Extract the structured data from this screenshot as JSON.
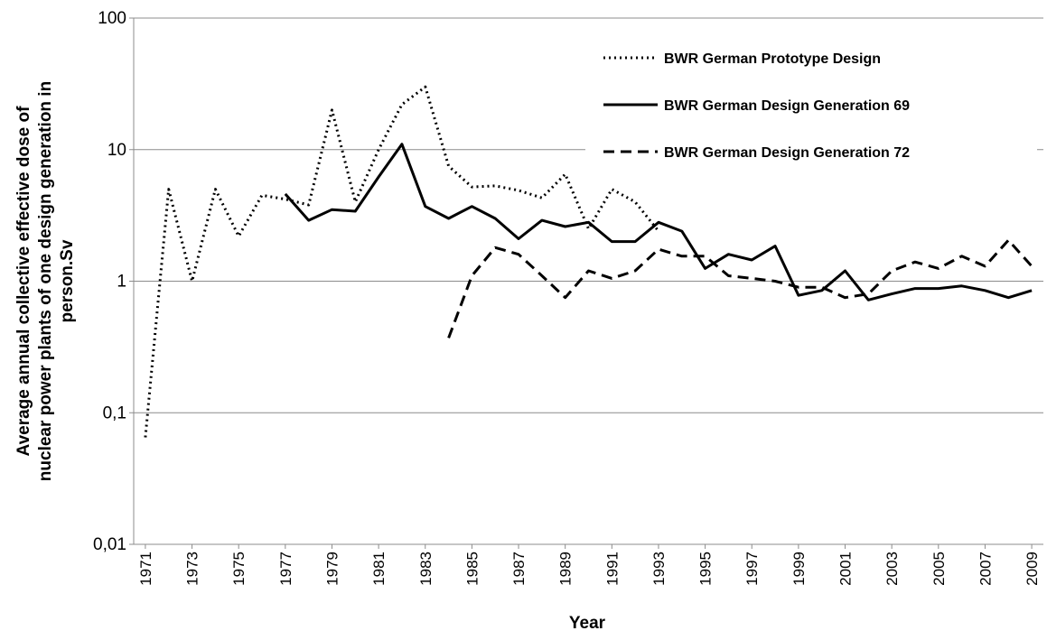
{
  "chart_data": {
    "type": "line",
    "x_label": "Year",
    "y_label": [
      "Average annual collective effective dose of",
      "nuclear power plants of one design generation in",
      "person.Sv"
    ],
    "x": [
      1971,
      1972,
      1973,
      1974,
      1975,
      1976,
      1977,
      1978,
      1979,
      1980,
      1981,
      1982,
      1983,
      1984,
      1985,
      1986,
      1987,
      1988,
      1989,
      1990,
      1991,
      1992,
      1993,
      1994,
      1995,
      1996,
      1997,
      1998,
      1999,
      2000,
      2001,
      2002,
      2003,
      2004,
      2005,
      2006,
      2007,
      2008,
      2009
    ],
    "xlim": [
      1970.5,
      2009.5
    ],
    "xticks": [
      1971,
      1973,
      1975,
      1977,
      1979,
      1981,
      1983,
      1985,
      1987,
      1989,
      1991,
      1993,
      1995,
      1997,
      1999,
      2001,
      2003,
      2005,
      2007,
      2009
    ],
    "ylim": [
      0.01,
      100
    ],
    "yscale": "log",
    "yticks": [
      {
        "value": 0.01,
        "label": "0,01"
      },
      {
        "value": 0.1,
        "label": "0,1"
      },
      1,
      10,
      100
    ],
    "grid": true,
    "legend": "top-right",
    "series": [
      {
        "name": "BWR German Prototype Design",
        "color": "#000000",
        "dash": "dotted",
        "values": [
          0.065,
          5,
          1.0,
          5,
          2.2,
          4.5,
          4.2,
          3.8,
          20,
          4.0,
          10,
          22,
          30,
          7.5,
          5.2,
          5.3,
          4.9,
          4.3,
          6.5,
          2.5,
          5.0,
          4.0,
          2.4,
          null,
          null,
          null,
          null,
          null,
          null,
          null,
          null,
          null,
          null,
          null,
          null,
          null,
          null,
          null,
          null
        ]
      },
      {
        "name": "BWR German Design Generation 69",
        "color": "#000000",
        "dash": "solid",
        "values": [
          null,
          null,
          null,
          null,
          null,
          null,
          4.6,
          2.9,
          3.5,
          3.4,
          6.2,
          11,
          3.7,
          3.0,
          3.7,
          3.0,
          2.1,
          2.9,
          2.6,
          2.8,
          2.0,
          2.0,
          2.8,
          2.4,
          1.25,
          1.6,
          1.45,
          1.85,
          0.78,
          0.85,
          1.2,
          0.72,
          0.8,
          0.88,
          0.88,
          0.92,
          0.85,
          0.75,
          0.85
        ]
      },
      {
        "name": "BWR German Design Generation 72",
        "color": "#000000",
        "dash": "dashed",
        "values": [
          null,
          null,
          null,
          null,
          null,
          null,
          null,
          null,
          null,
          null,
          null,
          null,
          null,
          0.37,
          1.1,
          1.8,
          1.6,
          1.1,
          0.75,
          1.2,
          1.05,
          1.2,
          1.75,
          1.55,
          1.55,
          1.1,
          1.05,
          1.0,
          0.9,
          0.9,
          0.75,
          0.8,
          1.2,
          1.4,
          1.25,
          1.55,
          1.3,
          2.05,
          1.3
        ]
      }
    ]
  }
}
